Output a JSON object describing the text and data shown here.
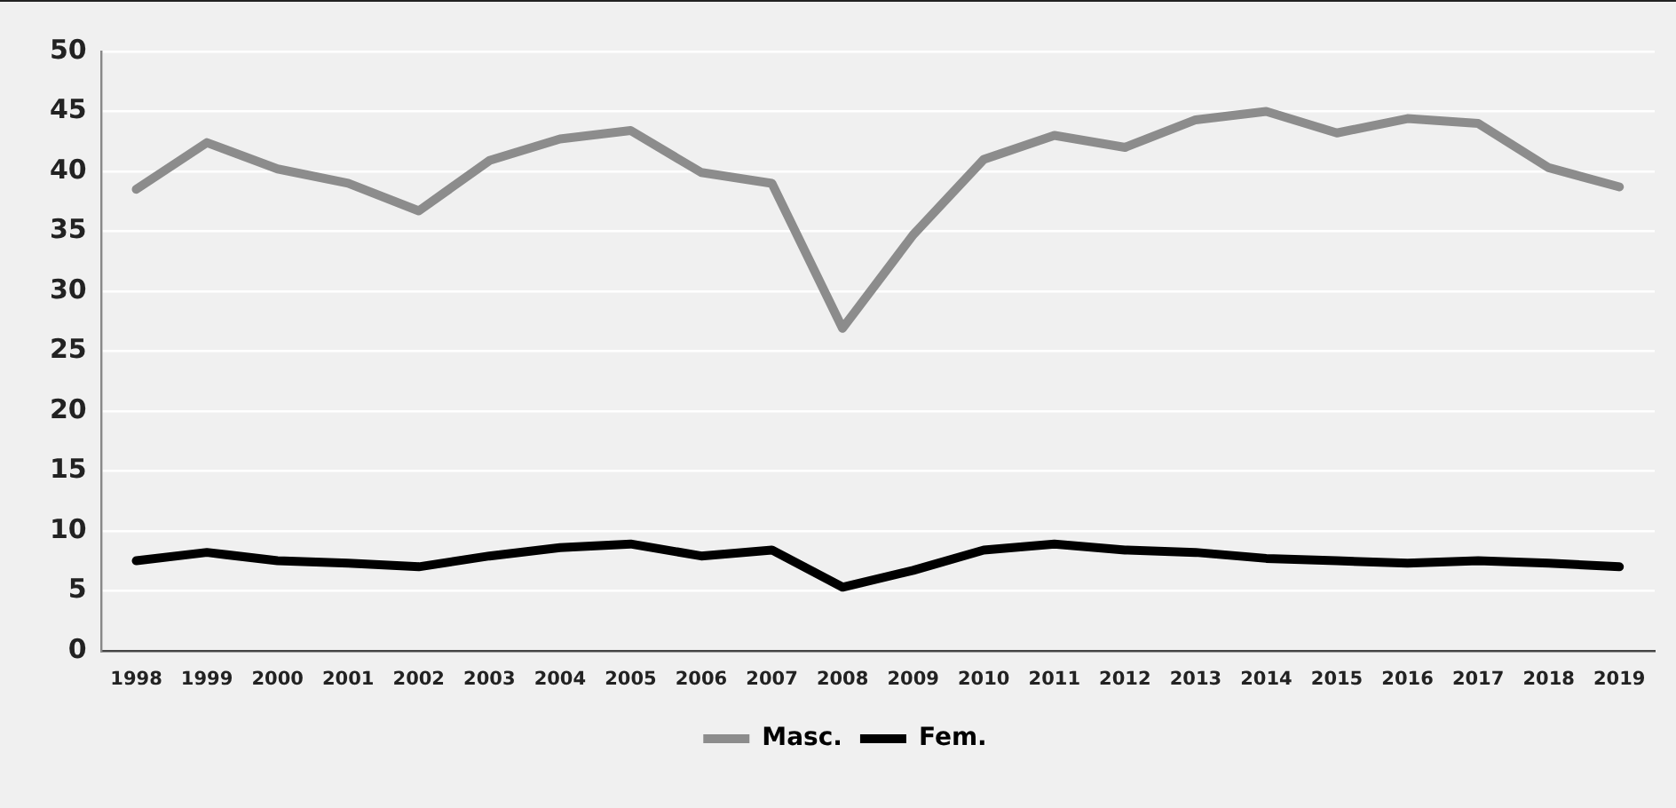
{
  "chart_data": {
    "type": "line",
    "categories": [
      "1998",
      "1999",
      "2000",
      "2001",
      "2002",
      "2003",
      "2004",
      "2005",
      "2006",
      "2007",
      "2008",
      "2009",
      "2010",
      "2011",
      "2012",
      "2013",
      "2014",
      "2015",
      "2016",
      "2017",
      "2018",
      "2019"
    ],
    "series": [
      {
        "name": "Masc.",
        "color": "#8c8c8c",
        "values": [
          38.5,
          42.4,
          40.2,
          39.0,
          36.7,
          40.9,
          42.7,
          43.4,
          39.9,
          39.0,
          26.9,
          34.7,
          41.0,
          43.0,
          42.0,
          44.3,
          45.0,
          43.2,
          44.4,
          44.0,
          40.3,
          38.7
        ]
      },
      {
        "name": "Fem.",
        "color": "#000000",
        "values": [
          7.5,
          8.2,
          7.5,
          7.3,
          7.0,
          7.9,
          8.6,
          8.9,
          7.9,
          8.4,
          5.3,
          6.7,
          8.4,
          8.9,
          8.4,
          8.2,
          7.7,
          7.5,
          7.3,
          7.5,
          7.3,
          7.0
        ]
      }
    ],
    "ylim": [
      0,
      50
    ],
    "yticks": [
      0,
      5,
      10,
      15,
      20,
      25,
      30,
      35,
      40,
      45,
      50
    ],
    "grid": "y",
    "legend": "bottom",
    "marker": "none",
    "line_style": "solid"
  }
}
